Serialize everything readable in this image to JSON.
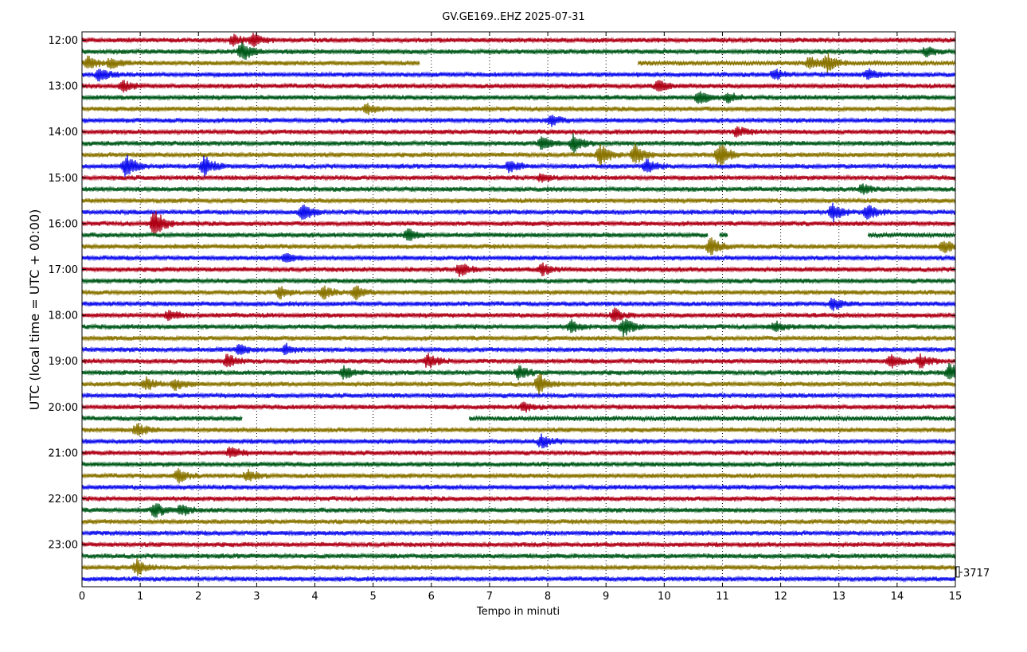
{
  "chart_data": {
    "type": "line",
    "title": "GV.GE169..EHZ 2025-07-31",
    "xlabel": "Tempo in minuti",
    "ylabel": "UTC (local time = UTC + 00:00)",
    "xlim": [
      0,
      15
    ],
    "x_ticks": [
      "0",
      "1",
      "2",
      "3",
      "4",
      "5",
      "6",
      "7",
      "8",
      "9",
      "10",
      "11",
      "12",
      "13",
      "14",
      "15"
    ],
    "y_ticks": [
      "12:00",
      "13:00",
      "14:00",
      "15:00",
      "16:00",
      "17:00",
      "18:00",
      "19:00",
      "20:00",
      "21:00",
      "22:00",
      "23:00"
    ],
    "grid": "vertical dotted",
    "trace_colors": [
      "#b00016",
      "#005a1a",
      "#8a7400",
      "#1010ee"
    ],
    "scale_label": "3717",
    "traces_count": 48,
    "gaps": [
      {
        "row": 2,
        "start_min": 5.8,
        "end_min": 9.55
      },
      {
        "row": 17,
        "start_min": 10.75,
        "end_min": 10.95
      },
      {
        "row": 17,
        "start_min": 11.1,
        "end_min": 13.5
      },
      {
        "row": 33,
        "start_min": 2.75,
        "end_min": 6.65
      }
    ],
    "events": [
      {
        "row": 0,
        "min": 2.6,
        "amp": 7
      },
      {
        "row": 0,
        "min": 2.95,
        "amp": 8
      },
      {
        "row": 1,
        "min": 2.75,
        "amp": 12
      },
      {
        "row": 1,
        "min": 14.5,
        "amp": 6
      },
      {
        "row": 2,
        "min": 0.1,
        "amp": 8
      },
      {
        "row": 2,
        "min": 0.5,
        "amp": 7
      },
      {
        "row": 2,
        "min": 12.5,
        "amp": 9
      },
      {
        "row": 2,
        "min": 12.8,
        "amp": 10
      },
      {
        "row": 3,
        "min": 0.3,
        "amp": 9
      },
      {
        "row": 3,
        "min": 11.9,
        "amp": 6
      },
      {
        "row": 3,
        "min": 13.5,
        "amp": 6
      },
      {
        "row": 4,
        "min": 0.7,
        "amp": 7
      },
      {
        "row": 4,
        "min": 9.9,
        "amp": 7
      },
      {
        "row": 5,
        "min": 10.6,
        "amp": 8
      },
      {
        "row": 5,
        "min": 11.1,
        "amp": 6
      },
      {
        "row": 6,
        "min": 4.9,
        "amp": 6
      },
      {
        "row": 7,
        "min": 8.05,
        "amp": 7
      },
      {
        "row": 8,
        "min": 11.25,
        "amp": 6
      },
      {
        "row": 9,
        "min": 7.9,
        "amp": 9
      },
      {
        "row": 9,
        "min": 8.45,
        "amp": 12
      },
      {
        "row": 10,
        "min": 8.9,
        "amp": 14
      },
      {
        "row": 10,
        "min": 9.5,
        "amp": 13
      },
      {
        "row": 10,
        "min": 10.95,
        "amp": 16
      },
      {
        "row": 11,
        "min": 0.75,
        "amp": 16
      },
      {
        "row": 11,
        "min": 2.1,
        "amp": 13
      },
      {
        "row": 11,
        "min": 9.7,
        "amp": 9
      },
      {
        "row": 11,
        "min": 7.35,
        "amp": 8
      },
      {
        "row": 12,
        "min": 7.9,
        "amp": 5
      },
      {
        "row": 13,
        "min": 13.4,
        "amp": 6
      },
      {
        "row": 15,
        "min": 3.8,
        "amp": 11
      },
      {
        "row": 15,
        "min": 12.9,
        "amp": 11
      },
      {
        "row": 15,
        "min": 13.5,
        "amp": 10
      },
      {
        "row": 16,
        "min": 1.25,
        "amp": 18
      },
      {
        "row": 17,
        "min": 5.6,
        "amp": 7
      },
      {
        "row": 18,
        "min": 10.8,
        "amp": 11
      },
      {
        "row": 18,
        "min": 14.8,
        "amp": 9
      },
      {
        "row": 19,
        "min": 3.5,
        "amp": 6
      },
      {
        "row": 20,
        "min": 6.5,
        "amp": 8
      },
      {
        "row": 20,
        "min": 7.9,
        "amp": 7
      },
      {
        "row": 22,
        "min": 3.4,
        "amp": 7
      },
      {
        "row": 22,
        "min": 4.15,
        "amp": 7
      },
      {
        "row": 22,
        "min": 4.7,
        "amp": 8
      },
      {
        "row": 23,
        "min": 12.9,
        "amp": 8
      },
      {
        "row": 24,
        "min": 9.15,
        "amp": 8
      },
      {
        "row": 24,
        "min": 1.5,
        "amp": 6
      },
      {
        "row": 25,
        "min": 9.3,
        "amp": 12
      },
      {
        "row": 25,
        "min": 11.9,
        "amp": 6
      },
      {
        "row": 25,
        "min": 8.4,
        "amp": 7
      },
      {
        "row": 27,
        "min": 3.5,
        "amp": 7
      },
      {
        "row": 27,
        "min": 2.7,
        "amp": 6
      },
      {
        "row": 28,
        "min": 5.95,
        "amp": 9
      },
      {
        "row": 28,
        "min": 2.5,
        "amp": 8
      },
      {
        "row": 28,
        "min": 14.4,
        "amp": 8
      },
      {
        "row": 28,
        "min": 13.9,
        "amp": 8
      },
      {
        "row": 29,
        "min": 7.5,
        "amp": 9
      },
      {
        "row": 29,
        "min": 4.5,
        "amp": 8
      },
      {
        "row": 29,
        "min": 14.9,
        "amp": 12
      },
      {
        "row": 30,
        "min": 7.85,
        "amp": 13
      },
      {
        "row": 30,
        "min": 1.1,
        "amp": 8
      },
      {
        "row": 30,
        "min": 1.6,
        "amp": 7
      },
      {
        "row": 32,
        "min": 7.6,
        "amp": 5
      },
      {
        "row": 34,
        "min": 0.95,
        "amp": 8
      },
      {
        "row": 35,
        "min": 7.9,
        "amp": 9
      },
      {
        "row": 36,
        "min": 2.55,
        "amp": 7
      },
      {
        "row": 38,
        "min": 1.65,
        "amp": 8
      },
      {
        "row": 38,
        "min": 2.85,
        "amp": 7
      },
      {
        "row": 41,
        "min": 1.25,
        "amp": 9
      },
      {
        "row": 41,
        "min": 1.7,
        "amp": 7
      },
      {
        "row": 46,
        "min": 0.95,
        "amp": 10
      }
    ]
  }
}
